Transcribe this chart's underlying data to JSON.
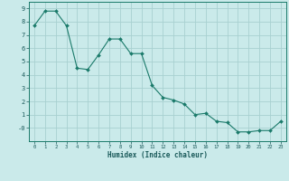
{
  "x": [
    0,
    1,
    2,
    3,
    4,
    5,
    6,
    7,
    8,
    9,
    10,
    11,
    12,
    13,
    14,
    15,
    16,
    17,
    18,
    19,
    20,
    21,
    22,
    23
  ],
  "y": [
    7.7,
    8.8,
    8.8,
    7.7,
    4.5,
    4.4,
    5.5,
    6.7,
    6.7,
    5.6,
    5.6,
    3.2,
    2.3,
    2.1,
    1.8,
    1.0,
    1.1,
    0.5,
    0.4,
    -0.3,
    -0.3,
    -0.2,
    -0.2,
    0.5
  ],
  "xlim": [
    -0.5,
    23.5
  ],
  "ylim": [
    -1.0,
    9.5
  ],
  "yticks": [
    0,
    1,
    2,
    3,
    4,
    5,
    6,
    7,
    8,
    9
  ],
  "ytick_labels": [
    "-0",
    "1",
    "2",
    "3",
    "4",
    "5",
    "6",
    "7",
    "8",
    "9"
  ],
  "xticks": [
    0,
    1,
    2,
    3,
    4,
    5,
    6,
    7,
    8,
    9,
    10,
    11,
    12,
    13,
    14,
    15,
    16,
    17,
    18,
    19,
    20,
    21,
    22,
    23
  ],
  "xlabel": "Humidex (Indice chaleur)",
  "line_color": "#1a7a6a",
  "marker_color": "#1a7a6a",
  "bg_color": "#caeaea",
  "grid_color": "#a8d0d0",
  "axis_color": "#1a7a6a",
  "tick_color": "#1a5a5a",
  "xlabel_color": "#1a5a5a",
  "font_family": "monospace"
}
